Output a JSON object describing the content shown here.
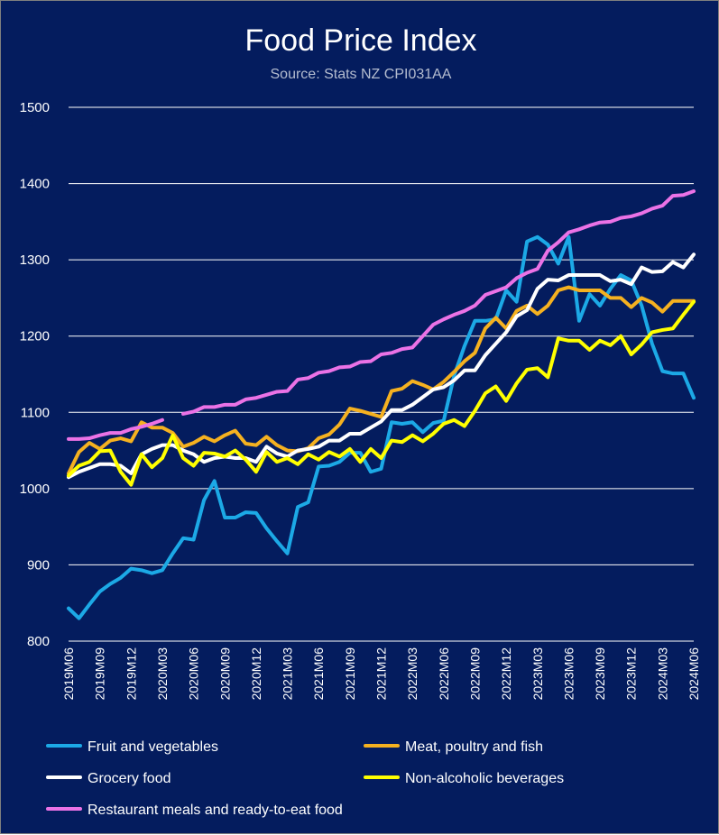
{
  "chart_data": {
    "type": "line",
    "title": "Food Price Index",
    "subtitle": "Source: Stats NZ CPI031AA",
    "xlabel": "",
    "ylabel": "",
    "ylim": [
      800,
      1500
    ],
    "yticks": [
      800,
      900,
      1000,
      1100,
      1200,
      1300,
      1400,
      1500
    ],
    "grid": true,
    "legend_position": "bottom",
    "x": [
      "2019M06",
      "2019M07",
      "2019M08",
      "2019M09",
      "2019M10",
      "2019M11",
      "2019M12",
      "2020M01",
      "2020M02",
      "2020M03",
      "2020M04",
      "2020M05",
      "2020M06",
      "2020M07",
      "2020M08",
      "2020M09",
      "2020M10",
      "2020M11",
      "2020M12",
      "2021M01",
      "2021M02",
      "2021M03",
      "2021M04",
      "2021M05",
      "2021M06",
      "2021M07",
      "2021M08",
      "2021M09",
      "2021M10",
      "2021M11",
      "2021M12",
      "2022M01",
      "2022M02",
      "2022M03",
      "2022M04",
      "2022M05",
      "2022M06",
      "2022M07",
      "2022M08",
      "2022M09",
      "2022M10",
      "2022M11",
      "2022M12",
      "2023M01",
      "2023M02",
      "2023M03",
      "2023M04",
      "2023M05",
      "2023M06",
      "2023M07",
      "2023M08",
      "2023M09",
      "2023M10",
      "2023M11",
      "2023M12",
      "2024M01",
      "2024M02",
      "2024M03",
      "2024M04",
      "2024M05",
      "2024M06"
    ],
    "xtick_labels": [
      "2019M06",
      "2019M09",
      "2019M12",
      "2020M03",
      "2020M06",
      "2020M09",
      "2020M12",
      "2021M03",
      "2021M06",
      "2021M09",
      "2021M12",
      "2022M03",
      "2022M06",
      "2022M09",
      "2022M12",
      "2023M03",
      "2023M06",
      "2023M09",
      "2023M12",
      "2024M03",
      "2024M06"
    ],
    "series": [
      {
        "name": "Fruit and vegetables",
        "color": "#1CA9E6",
        "values": [
          843,
          830,
          848,
          865,
          875,
          883,
          895,
          893,
          889,
          893,
          915,
          935,
          933,
          985,
          1010,
          962,
          962,
          969,
          968,
          948,
          931,
          915,
          976,
          982,
          1029,
          1030,
          1035,
          1047,
          1047,
          1022,
          1026,
          1087,
          1085,
          1087,
          1074,
          1086,
          1089,
          1148,
          1187,
          1220,
          1220,
          1222,
          1260,
          1245,
          1324,
          1330,
          1320,
          1295,
          1330,
          1220,
          1255,
          1240,
          1262,
          1280,
          1273,
          1240,
          1190,
          1154,
          1151,
          1151,
          1119
        ]
      },
      {
        "name": "Meat, poultry and fish",
        "color": "#F5B120",
        "values": [
          1020,
          1048,
          1060,
          1052,
          1063,
          1066,
          1062,
          1087,
          1080,
          1080,
          1073,
          1055,
          1060,
          1068,
          1062,
          1070,
          1076,
          1059,
          1057,
          1068,
          1057,
          1050,
          1049,
          1053,
          1066,
          1071,
          1084,
          1105,
          1102,
          1098,
          1094,
          1128,
          1131,
          1141,
          1136,
          1130,
          1140,
          1153,
          1167,
          1178,
          1210,
          1224,
          1210,
          1233,
          1240,
          1229,
          1240,
          1260,
          1264,
          1260,
          1260,
          1260,
          1250,
          1250,
          1238,
          1250,
          1244,
          1232,
          1246,
          1246,
          1246
        ]
      },
      {
        "name": "Grocery food",
        "color": "#FFFFFF",
        "values": [
          1015,
          1022,
          1027,
          1032,
          1032,
          1030,
          1020,
          1045,
          1052,
          1057,
          1057,
          1050,
          1045,
          1035,
          1040,
          1042,
          1040,
          1040,
          1035,
          1055,
          1046,
          1042,
          1050,
          1052,
          1055,
          1063,
          1063,
          1072,
          1072,
          1080,
          1088,
          1103,
          1103,
          1110,
          1120,
          1130,
          1133,
          1142,
          1155,
          1155,
          1175,
          1190,
          1205,
          1226,
          1234,
          1262,
          1274,
          1273,
          1280,
          1280,
          1280,
          1280,
          1272,
          1274,
          1268,
          1290,
          1284,
          1285,
          1297,
          1290,
          1307
        ]
      },
      {
        "name": "Non-alcoholic beverages",
        "color": "#FFFF00",
        "values": [
          1017,
          1030,
          1035,
          1049,
          1050,
          1022,
          1005,
          1045,
          1028,
          1040,
          1070,
          1040,
          1030,
          1047,
          1046,
          1042,
          1050,
          1038,
          1022,
          1048,
          1035,
          1040,
          1032,
          1045,
          1038,
          1048,
          1042,
          1052,
          1035,
          1052,
          1040,
          1063,
          1061,
          1070,
          1062,
          1072,
          1085,
          1090,
          1082,
          1102,
          1125,
          1134,
          1115,
          1138,
          1156,
          1158,
          1146,
          1197,
          1194,
          1194,
          1182,
          1194,
          1188,
          1200,
          1176,
          1189,
          1205,
          1208,
          1210,
          1228,
          1245
        ]
      },
      {
        "name": "Restaurant meals and ready-to-eat food",
        "color": "#EB72E6",
        "values": [
          1065,
          1065,
          1066,
          1070,
          1073,
          1073,
          1078,
          1081,
          1085,
          1090,
          null,
          1098,
          1101,
          1107,
          1107,
          1110,
          1110,
          1117,
          1119,
          1123,
          1127,
          1128,
          1143,
          1145,
          1152,
          1154,
          1159,
          1160,
          1166,
          1167,
          1176,
          1178,
          1183,
          1185,
          1200,
          1215,
          1222,
          1228,
          1233,
          1240,
          1254,
          1259,
          1264,
          1276,
          1283,
          1288,
          1312,
          1323,
          1336,
          1340,
          1345,
          1349,
          1350,
          1355,
          1357,
          1361,
          1367,
          1371,
          1384,
          1385,
          1390
        ]
      }
    ]
  }
}
